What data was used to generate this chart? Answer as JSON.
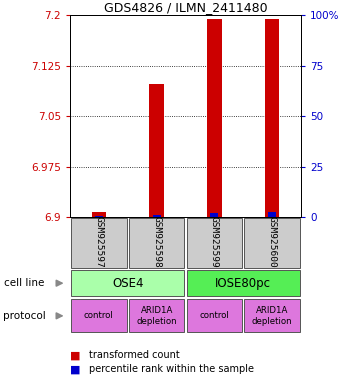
{
  "title": "GDS4826 / ILMN_2411480",
  "samples": [
    "GSM925597",
    "GSM925598",
    "GSM925599",
    "GSM925600"
  ],
  "red_values": [
    6.907,
    7.098,
    7.195,
    7.195
  ],
  "blue_values": [
    6.902,
    6.903,
    6.906,
    6.908
  ],
  "ymin": 6.9,
  "ymax": 7.2,
  "yticks_left": [
    6.9,
    6.975,
    7.05,
    7.125,
    7.2
  ],
  "yticks_right": [
    0,
    25,
    50,
    75,
    100
  ],
  "cell_line_labels": [
    "OSE4",
    "IOSE80pc"
  ],
  "cell_line_colors": [
    "#aaffaa",
    "#55ee55"
  ],
  "protocol_labels": [
    "control",
    "ARID1A\ndepletion",
    "control",
    "ARID1A\ndepletion"
  ],
  "protocol_color": "#dd77dd",
  "sample_box_color": "#cccccc",
  "red_bar_color": "#cc0000",
  "blue_bar_color": "#0000cc",
  "legend_red": "transformed count",
  "legend_blue": "percentile rank within the sample",
  "bar_width": 0.25
}
